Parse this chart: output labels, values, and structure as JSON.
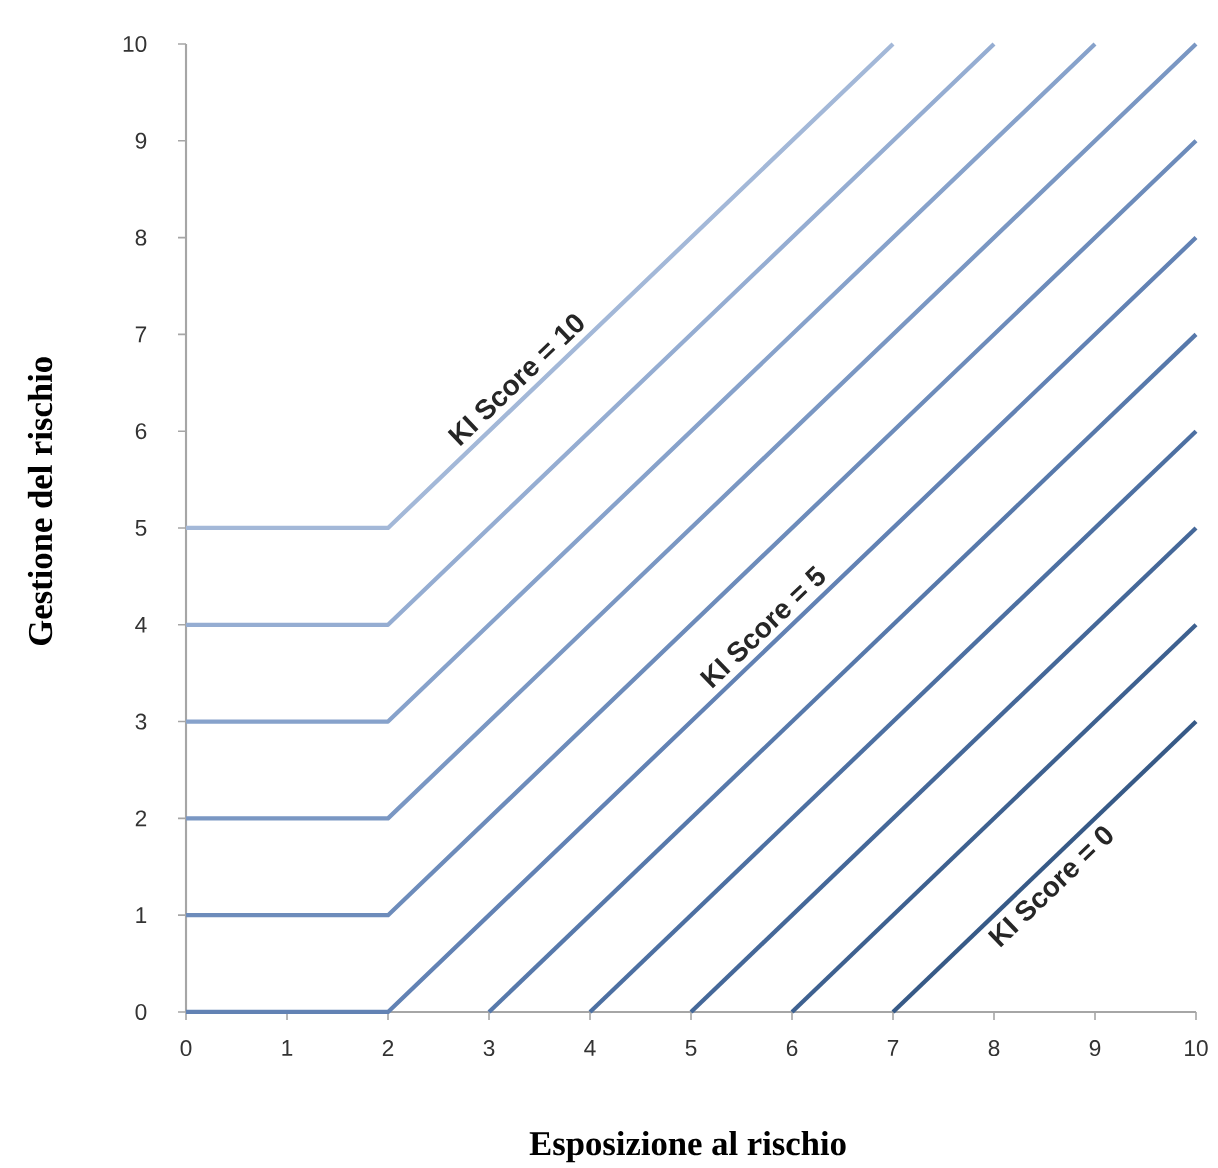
{
  "chart_data": {
    "type": "line",
    "xlabel": "Esposizione al rischio",
    "ylabel": "Gestione del rischio",
    "xlim": [
      0,
      10
    ],
    "ylim": [
      0,
      10
    ],
    "xticks": [
      0,
      1,
      2,
      3,
      4,
      5,
      6,
      7,
      8,
      9,
      10
    ],
    "yticks": [
      0,
      1,
      2,
      3,
      4,
      5,
      6,
      7,
      8,
      9,
      10
    ],
    "grid": false,
    "legend": false,
    "marker": "none",
    "line_style": "solid",
    "series": [
      {
        "name": "KI Score = 10",
        "color": "#a3b8d8",
        "x": [
          0,
          2,
          7
        ],
        "values": [
          5,
          5,
          10
        ]
      },
      {
        "color": "#95add2",
        "x": [
          0,
          2,
          8
        ],
        "values": [
          4,
          4,
          10
        ]
      },
      {
        "color": "#87a2cb",
        "x": [
          0,
          2,
          9
        ],
        "values": [
          3,
          3,
          10
        ]
      },
      {
        "color": "#7a97c3",
        "x": [
          0,
          2,
          10
        ],
        "values": [
          2,
          2,
          10
        ]
      },
      {
        "color": "#6d8cbb",
        "x": [
          0,
          2,
          10
        ],
        "values": [
          1,
          1,
          9
        ]
      },
      {
        "name": "KI Score = 5",
        "color": "#6282b4",
        "x": [
          0,
          2,
          10
        ],
        "values": [
          0,
          0,
          8
        ]
      },
      {
        "color": "#5779ab",
        "x": [
          3,
          10
        ],
        "values": [
          0,
          7
        ]
      },
      {
        "color": "#4d70a2",
        "x": [
          4,
          10
        ],
        "values": [
          0,
          6
        ]
      },
      {
        "color": "#456899",
        "x": [
          5,
          10
        ],
        "values": [
          0,
          5
        ]
      },
      {
        "color": "#3e6190",
        "x": [
          6,
          10
        ],
        "values": [
          0,
          4
        ]
      },
      {
        "name": "KI Score = 0",
        "color": "#375a87",
        "x": [
          7,
          10
        ],
        "values": [
          0,
          3
        ]
      }
    ]
  }
}
